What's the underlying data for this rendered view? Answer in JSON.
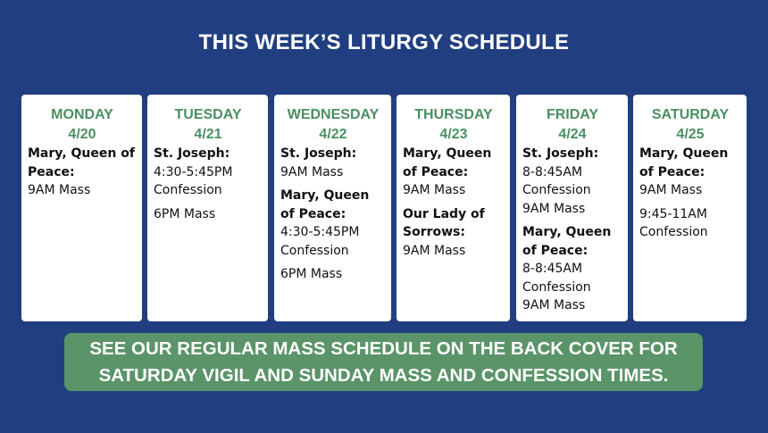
{
  "title": "THIS WEEK’S LITURGY SCHEDULE",
  "colors": {
    "background": "#213f80",
    "day_heading": "#4a8f63",
    "banner": "#5a9468"
  },
  "days": [
    {
      "name": "MONDAY",
      "date": "4/20",
      "entries": [
        {
          "place": "Mary, Queen of Peace:",
          "lines": [
            "9AM Mass"
          ]
        }
      ]
    },
    {
      "name": "TUESDAY",
      "date": "4/21",
      "entries": [
        {
          "place": "St. Joseph:",
          "lines": [
            "4:30-5:45PM Confession"
          ]
        },
        {
          "place": "",
          "lines": [
            "6PM Mass"
          ]
        }
      ]
    },
    {
      "name": "WEDNESDAY",
      "date": "4/22",
      "entries": [
        {
          "place": "St. Joseph:",
          "lines": [
            "9AM Mass"
          ]
        },
        {
          "place": "Mary, Queen of Peace:",
          "lines": [
            "4:30-5:45PM Confession"
          ]
        },
        {
          "place": "",
          "lines": [
            "6PM Mass"
          ]
        }
      ]
    },
    {
      "name": "THURSDAY",
      "date": "4/23",
      "entries": [
        {
          "place": "Mary, Queen of Peace:",
          "lines": [
            "9AM Mass"
          ]
        },
        {
          "place": "Our Lady of Sorrows:",
          "lines": [
            "9AM Mass"
          ]
        }
      ]
    },
    {
      "name": "FRIDAY",
      "date": "4/24",
      "entries": [
        {
          "place": "St. Joseph:",
          "lines": [
            "8-8:45AM Confession",
            "9AM Mass"
          ]
        },
        {
          "place": "Mary, Queen of Peace:",
          "lines": [
            "8-8:45AM Confession",
            "9AM Mass"
          ]
        }
      ]
    },
    {
      "name": "SATURDAY",
      "date": "4/25",
      "entries": [
        {
          "place": "Mary, Queen of Peace:",
          "lines": [
            "9AM Mass"
          ]
        },
        {
          "place": "",
          "lines": [
            "9:45-11AM Confession"
          ]
        }
      ]
    }
  ],
  "banner": {
    "line1": "SEE OUR REGULAR MASS SCHEDULE ON THE BACK COVER FOR",
    "line2": "SATURDAY VIGIL AND SUNDAY MASS AND CONFESSION TIMES."
  }
}
